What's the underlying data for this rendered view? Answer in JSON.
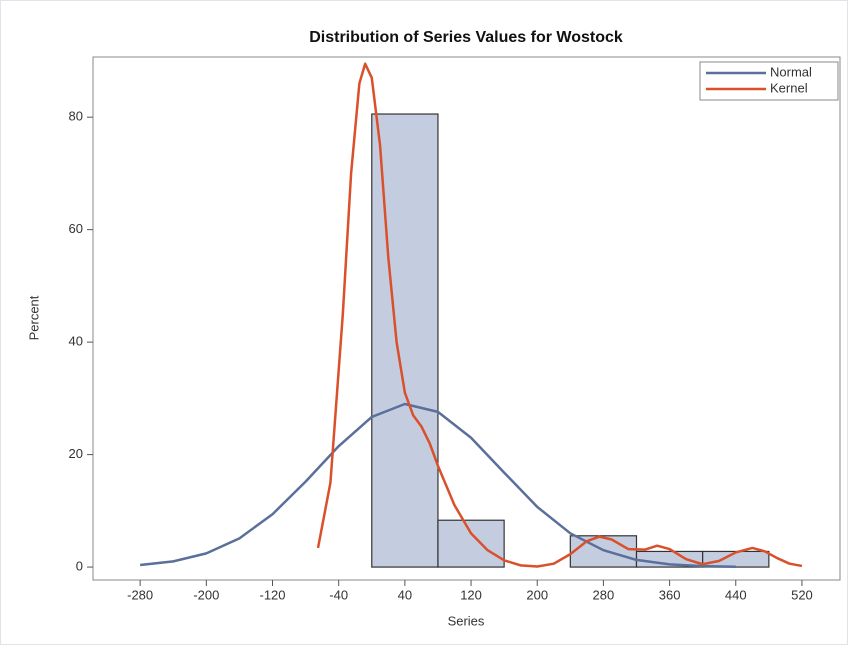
{
  "chart_data": {
    "type": "histogram",
    "title": "Distribution of Series Values for Wostock",
    "x_label": "Series",
    "y_label": "Percent",
    "bins": [
      0,
      80,
      160,
      240,
      320,
      400,
      480
    ],
    "values": [
      80.56,
      8.33,
      0,
      5.56,
      2.78,
      2.78
    ],
    "color": "#c4cde0",
    "xlim": [
      -337,
      566
    ],
    "ylim": [
      -2.3,
      90.7
    ],
    "xticks": [
      -280,
      -200,
      -120,
      -40,
      40,
      120,
      200,
      280,
      360,
      440,
      520
    ],
    "yticks": [
      0,
      20,
      40,
      60,
      80
    ],
    "legend": "top-right",
    "series": [
      {
        "name": "Normal",
        "color": "#5a6f9a",
        "x": [
          -280,
          -240,
          -200,
          -160,
          -120,
          -80,
          -40,
          0,
          40,
          80,
          120,
          160,
          200,
          240,
          280,
          320,
          360,
          400,
          440
        ],
        "values": [
          0.37,
          1.01,
          2.43,
          5.1,
          9.4,
          15.2,
          21.5,
          26.7,
          29.0,
          27.6,
          23.0,
          16.8,
          10.7,
          6.0,
          3.0,
          1.27,
          0.48,
          0.16,
          0.05
        ]
      },
      {
        "name": "Kernel",
        "color": "#d9502a",
        "x": [
          -65,
          -50,
          -35,
          -25,
          -15,
          -8,
          0,
          10,
          20,
          30,
          40,
          50,
          60,
          70,
          80,
          100,
          120,
          140,
          160,
          180,
          200,
          220,
          240,
          260,
          275,
          290,
          310,
          330,
          345,
          360,
          380,
          400,
          420,
          440,
          460,
          475,
          490,
          505,
          520
        ],
        "values": [
          3.4,
          15,
          45,
          70,
          86,
          89.5,
          87,
          75,
          55,
          40,
          31,
          27,
          25,
          22,
          18,
          11,
          6,
          3,
          1.2,
          0.3,
          0.1,
          0.6,
          2.3,
          4.6,
          5.4,
          4.9,
          3.2,
          3.1,
          3.8,
          3.2,
          1.4,
          0.5,
          1.1,
          2.6,
          3.4,
          2.8,
          1.6,
          0.6,
          0.2
        ]
      }
    ]
  }
}
